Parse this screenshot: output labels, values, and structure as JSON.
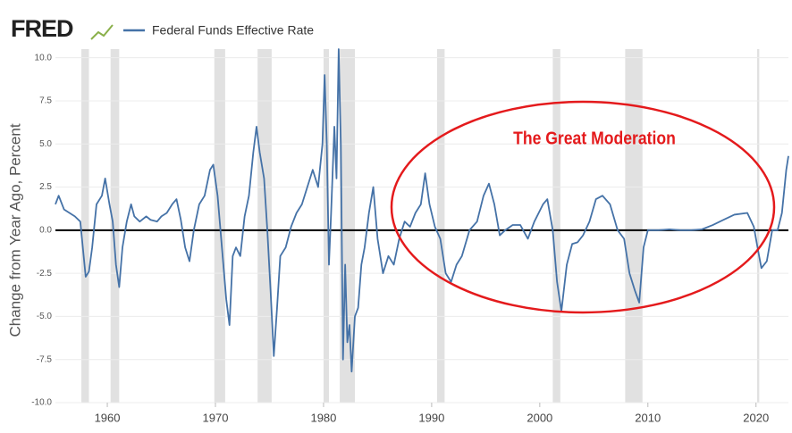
{
  "chart_data": {
    "type": "line",
    "logo": "FRED",
    "y_label": "Change from Year Ago, Percent",
    "annotation": "The Great Moderation",
    "xlim": [
      1955.2,
      2023.0
    ],
    "xticks": [
      1960,
      1970,
      1980,
      1990,
      2000,
      2010,
      2020
    ],
    "ylim": [
      -10,
      10.5
    ],
    "yticks": [
      {
        "value": 10,
        "label": "10.0"
      },
      {
        "value": 7.5,
        "label": "7.5"
      },
      {
        "value": 5,
        "label": "5.0"
      },
      {
        "value": 2.5,
        "label": "2.5"
      },
      {
        "value": 0,
        "label": "0.0"
      },
      {
        "value": -2.5,
        "label": "-2.5"
      },
      {
        "value": -5,
        "label": "-5.0"
      },
      {
        "value": -7.5,
        "label": "-7.5"
      },
      {
        "value": -10,
        "label": "-10.0"
      }
    ],
    "grid": true,
    "recession_color": "#e1e1e1",
    "recessions": [
      [
        1957.6,
        1958.3
      ],
      [
        1960.3,
        1961.1
      ],
      [
        1969.9,
        1970.9
      ],
      [
        1973.9,
        1975.2
      ],
      [
        1980.0,
        1980.5
      ],
      [
        1981.5,
        1982.9
      ],
      [
        1990.5,
        1991.2
      ],
      [
        2001.2,
        2001.9
      ],
      [
        2007.9,
        2009.5
      ],
      [
        2020.1,
        2020.3
      ]
    ],
    "x": [
      1955.2,
      1955.5,
      1956,
      1956.5,
      1957,
      1957.5,
      1958,
      1958.3,
      1958.6,
      1959,
      1959.5,
      1959.8,
      1960.2,
      1960.5,
      1960.8,
      1961.1,
      1961.4,
      1961.8,
      1962.2,
      1962.5,
      1963,
      1963.6,
      1964,
      1964.6,
      1965,
      1965.5,
      1966,
      1966.4,
      1966.8,
      1967.2,
      1967.6,
      1968,
      1968.5,
      1969,
      1969.5,
      1969.8,
      1970.2,
      1970.6,
      1971.0,
      1971.3,
      1971.6,
      1971.9,
      1972.3,
      1972.7,
      1973.1,
      1973.5,
      1973.8,
      1974.1,
      1974.5,
      1974.8,
      1975.1,
      1975.4,
      1975.7,
      1976,
      1976.5,
      1977,
      1977.5,
      1978,
      1978.5,
      1979,
      1979.5,
      1979.9,
      1980.1,
      1980.3,
      1980.5,
      1980.7,
      1981,
      1981.2,
      1981.4,
      1981.6,
      1981.8,
      1982,
      1982.2,
      1982.4,
      1982.6,
      1982.9,
      1983.2,
      1983.5,
      1983.8,
      1984.2,
      1984.6,
      1985,
      1985.5,
      1986,
      1986.5,
      1987,
      1987.5,
      1988,
      1988.5,
      1989,
      1989.4,
      1989.8,
      1990.3,
      1990.8,
      1991.3,
      1991.8,
      1992.3,
      1992.8,
      1993.5,
      1994.2,
      1994.8,
      1995.3,
      1995.8,
      1996.3,
      1996.8,
      1997.5,
      1998.2,
      1998.9,
      1999.5,
      2000.3,
      2000.7,
      2001.2,
      2001.6,
      2002.0,
      2002.5,
      2003.0,
      2003.5,
      2004.0,
      2004.6,
      2005.2,
      2005.8,
      2006.5,
      2007.2,
      2007.8,
      2008.3,
      2008.8,
      2009.2,
      2009.6,
      2010.0,
      2011,
      2012,
      2013,
      2014,
      2015,
      2016,
      2017,
      2018,
      2019.2,
      2019.8,
      2020.2,
      2020.5,
      2021,
      2021.5,
      2022.0,
      2022.4,
      2022.8,
      2023.0
    ],
    "series": [
      {
        "name": "Federal Funds Effective Rate",
        "color": "#4572a7",
        "values": [
          1.5,
          2.0,
          1.2,
          1.0,
          0.8,
          0.5,
          -2.7,
          -2.4,
          -1.0,
          1.5,
          2.0,
          3.0,
          1.5,
          0.5,
          -2.0,
          -3.3,
          -1.0,
          0.5,
          1.5,
          0.8,
          0.5,
          0.8,
          0.6,
          0.5,
          0.8,
          1.0,
          1.5,
          1.8,
          0.6,
          -1.0,
          -1.8,
          0,
          1.5,
          2.0,
          3.5,
          3.8,
          2.0,
          -1.0,
          -4.0,
          -5.5,
          -1.5,
          -1.0,
          -1.5,
          0.8,
          2.0,
          4.5,
          6.0,
          4.5,
          3.0,
          0.0,
          -3.5,
          -7.3,
          -4.5,
          -1.5,
          -1.0,
          0.2,
          1.0,
          1.5,
          2.5,
          3.5,
          2.5,
          5.0,
          9.0,
          5.0,
          -2.0,
          1.0,
          6.0,
          3.0,
          10.5,
          5.0,
          -7.5,
          -2.0,
          -6.5,
          -5.5,
          -8.2,
          -5.0,
          -4.5,
          -2.0,
          -1.0,
          1.0,
          2.5,
          -0.5,
          -2.5,
          -1.5,
          -2.0,
          -0.5,
          0.5,
          0.2,
          1.0,
          1.5,
          3.3,
          1.5,
          0.2,
          -0.5,
          -2.5,
          -3.0,
          -2.0,
          -1.5,
          0.0,
          0.5,
          2.0,
          2.7,
          1.5,
          -0.3,
          0.0,
          0.3,
          0.3,
          -0.5,
          0.5,
          1.5,
          1.8,
          0.0,
          -3.0,
          -4.7,
          -2.0,
          -0.8,
          -0.7,
          -0.3,
          0.5,
          1.8,
          2.0,
          1.5,
          0.0,
          -0.5,
          -2.5,
          -3.5,
          -4.2,
          -1.0,
          0.0,
          0.0,
          0.05,
          0.0,
          0.0,
          0.05,
          0.3,
          0.6,
          0.9,
          1.0,
          0.2,
          -1.2,
          -2.2,
          -1.8,
          0.0,
          0.0,
          1.0,
          3.5,
          4.3
        ]
      }
    ]
  }
}
